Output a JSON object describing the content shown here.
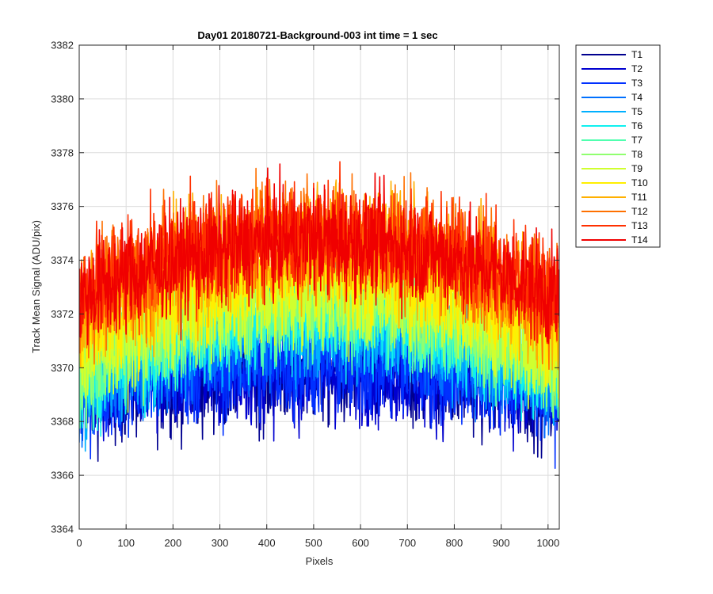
{
  "chart_data": {
    "type": "line",
    "title": "Day01 20180721-Background-003 int time = 1 sec",
    "xlabel": "Pixels",
    "ylabel": "Track Mean Signal (ADU/pix)",
    "xlim": [
      0,
      1024
    ],
    "ylim": [
      3364,
      3382
    ],
    "xticks": [
      0,
      100,
      200,
      300,
      400,
      500,
      600,
      700,
      800,
      900,
      1000
    ],
    "yticks": [
      3364,
      3366,
      3368,
      3370,
      3372,
      3374,
      3376,
      3378,
      3380,
      3382
    ],
    "grid": true,
    "legend_placement": "outside-top-right",
    "n_points": 1024,
    "noise_description": "approx",
    "series": [
      {
        "name": "T1",
        "color": "#00008f",
        "edge_level": 3369.0,
        "center_level": 3369.8,
        "noise": 1.0
      },
      {
        "name": "T2",
        "color": "#0000d0",
        "edge_level": 3369.1,
        "center_level": 3369.9,
        "noise": 1.0
      },
      {
        "name": "T3",
        "color": "#0030ff",
        "edge_level": 3369.2,
        "center_level": 3370.1,
        "noise": 1.0
      },
      {
        "name": "T4",
        "color": "#0070ff",
        "edge_level": 3369.3,
        "center_level": 3371.4,
        "noise": 1.0
      },
      {
        "name": "T5",
        "color": "#00b0ff",
        "edge_level": 3369.5,
        "center_level": 3371.8,
        "noise": 1.0
      },
      {
        "name": "T6",
        "color": "#10f0ef",
        "edge_level": 3369.7,
        "center_level": 3372.0,
        "noise": 1.0
      },
      {
        "name": "T7",
        "color": "#50ffaf",
        "edge_level": 3369.9,
        "center_level": 3372.3,
        "noise": 1.0
      },
      {
        "name": "T8",
        "color": "#90ff6f",
        "edge_level": 3370.1,
        "center_level": 3372.6,
        "noise": 1.0
      },
      {
        "name": "T9",
        "color": "#d0ff2f",
        "edge_level": 3370.4,
        "center_level": 3372.9,
        "noise": 1.0
      },
      {
        "name": "T10",
        "color": "#ffef00",
        "edge_level": 3371.2,
        "center_level": 3373.6,
        "noise": 1.0
      },
      {
        "name": "T11",
        "color": "#ffb000",
        "edge_level": 3371.9,
        "center_level": 3374.6,
        "noise": 1.1
      },
      {
        "name": "T12",
        "color": "#ff7000",
        "edge_level": 3372.4,
        "center_level": 3375.0,
        "noise": 1.1
      },
      {
        "name": "T13",
        "color": "#ff3000",
        "edge_level": 3372.7,
        "center_level": 3375.0,
        "noise": 1.0
      },
      {
        "name": "T14",
        "color": "#f00000",
        "edge_level": 3372.6,
        "center_level": 3374.7,
        "noise": 1.0
      }
    ]
  }
}
